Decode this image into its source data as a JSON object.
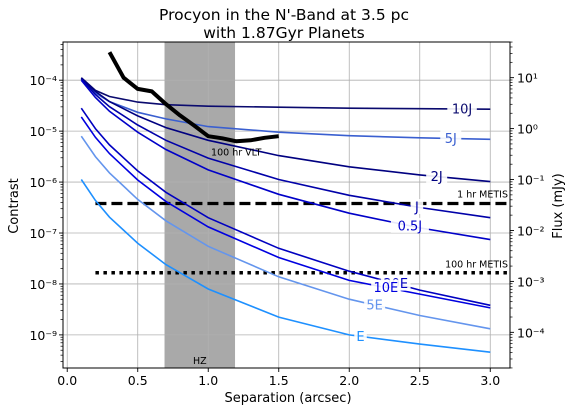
{
  "chart_data": {
    "type": "line",
    "title_line1": "Procyon in the N'-Band at 3.5 pc",
    "title_line2": "with 1.87Gyr Planets",
    "xlabel": "Separation (arcsec)",
    "ylabel": "Contrast",
    "ylabel_right": "Flux (mJy)",
    "xlim": [
      -0.03,
      3.14
    ],
    "ylim_log10": [
      -9.65,
      -3.25
    ],
    "right_ylim_log10": [
      -4.7,
      1.7
    ],
    "x_ticks": [
      0.0,
      0.5,
      1.0,
      1.5,
      2.0,
      2.5,
      3.0
    ],
    "x_tick_labels": [
      "0.0",
      "0.5",
      "1.0",
      "1.5",
      "2.0",
      "2.5",
      "3.0"
    ],
    "y_ticks_log10": [
      -9,
      -8,
      -7,
      -6,
      -5,
      -4
    ],
    "y_tick_labels": [
      "10⁻⁹",
      "10⁻⁸",
      "10⁻⁷",
      "10⁻⁶",
      "10⁻⁵",
      "10⁻⁴"
    ],
    "right_ticks_log10": [
      -4,
      -3,
      -2,
      -1,
      0,
      1
    ],
    "right_tick_labels": [
      "10⁻⁴",
      "10⁻³",
      "10⁻²",
      "10⁻¹",
      "10⁰",
      "10¹"
    ],
    "grid": true,
    "hz_band": {
      "x_start": 0.69,
      "x_end": 1.19,
      "label": "HZ",
      "color": "#a9a9a9"
    },
    "series": [
      {
        "name": "10J",
        "color": "#0a0a6e",
        "label_x": 2.8,
        "x": [
          0.1,
          0.2,
          0.3,
          0.5,
          0.7,
          1.0,
          1.5,
          2.0,
          2.5,
          3.0
        ],
        "log10_y": [
          -3.95,
          -4.2,
          -4.32,
          -4.43,
          -4.48,
          -4.51,
          -4.53,
          -4.55,
          -4.56,
          -4.57
        ]
      },
      {
        "name": "5J",
        "color": "#3a5fd0",
        "label_x": 2.72,
        "x": [
          0.1,
          0.2,
          0.3,
          0.5,
          0.7,
          1.0,
          1.5,
          2.0,
          2.5,
          3.0
        ],
        "log10_y": [
          -3.97,
          -4.25,
          -4.42,
          -4.63,
          -4.76,
          -4.91,
          -5.02,
          -5.09,
          -5.13,
          -5.16
        ]
      },
      {
        "name": "2J",
        "color": "#000080",
        "label_x": 2.62,
        "x": [
          0.1,
          0.2,
          0.3,
          0.5,
          0.7,
          1.0,
          1.5,
          2.0,
          2.5,
          3.0
        ],
        "log10_y": [
          -3.96,
          -4.22,
          -4.42,
          -4.7,
          -4.93,
          -5.18,
          -5.48,
          -5.7,
          -5.86,
          -5.99
        ]
      },
      {
        "name": "J",
        "color": "#0000a8",
        "label_x": 2.48,
        "x": [
          0.1,
          0.2,
          0.3,
          0.5,
          0.7,
          1.0,
          1.5,
          2.0,
          2.5,
          3.0
        ],
        "log10_y": [
          -3.97,
          -4.28,
          -4.52,
          -4.88,
          -5.18,
          -5.53,
          -5.95,
          -6.26,
          -6.5,
          -6.7
        ]
      },
      {
        "name": "0.5J",
        "color": "#0000c8",
        "label_x": 2.43,
        "x": [
          0.1,
          0.2,
          0.3,
          0.5,
          0.7,
          1.0,
          1.5,
          2.0,
          2.5,
          3.0
        ],
        "log10_y": [
          -4.0,
          -4.34,
          -4.61,
          -5.02,
          -5.36,
          -5.76,
          -6.24,
          -6.61,
          -6.9,
          -7.13
        ]
      },
      {
        "name": "20E",
        "color": "#0000c0",
        "label_x": 2.33,
        "x": [
          0.1,
          0.2,
          0.3,
          0.5,
          0.7,
          1.0,
          1.5,
          2.0,
          2.5,
          3.0
        ],
        "log10_y": [
          -4.55,
          -4.95,
          -5.27,
          -5.78,
          -6.2,
          -6.7,
          -7.3,
          -7.75,
          -8.12,
          -8.42
        ]
      },
      {
        "name": "10E",
        "color": "#0000e0",
        "label_x": 2.26,
        "x": [
          0.1,
          0.2,
          0.3,
          0.5,
          0.7,
          1.0,
          1.5,
          2.0,
          2.5,
          3.0
        ],
        "log10_y": [
          -4.72,
          -5.12,
          -5.44,
          -5.96,
          -6.38,
          -6.88,
          -7.48,
          -7.93,
          -8.2,
          -8.47
        ]
      },
      {
        "name": "5E",
        "color": "#6495ed",
        "label_x": 2.18,
        "x": [
          0.1,
          0.2,
          0.3,
          0.5,
          0.7,
          1.0,
          1.5,
          2.0,
          2.5,
          3.0
        ],
        "log10_y": [
          -5.1,
          -5.5,
          -5.82,
          -6.34,
          -6.76,
          -7.26,
          -7.86,
          -8.3,
          -8.62,
          -8.88
        ]
      },
      {
        "name": "E",
        "color": "#1e90ff",
        "label_x": 2.08,
        "x": [
          0.1,
          0.2,
          0.3,
          0.5,
          0.7,
          1.0,
          1.5,
          2.0,
          2.5,
          3.0
        ],
        "log10_y": [
          -5.95,
          -6.36,
          -6.69,
          -7.2,
          -7.62,
          -8.1,
          -8.65,
          -9.0,
          -9.18,
          -9.34
        ]
      }
    ],
    "vlt_curve": {
      "label": "100 hr VLT",
      "color": "#000000",
      "x": [
        0.3,
        0.4,
        0.5,
        0.6,
        0.7,
        0.8,
        0.9,
        1.0,
        1.1,
        1.2,
        1.3,
        1.4,
        1.5
      ],
      "log10_y": [
        -3.45,
        -3.95,
        -4.17,
        -4.22,
        -4.47,
        -4.69,
        -4.89,
        -5.1,
        -5.14,
        -5.2,
        -5.18,
        -5.13,
        -5.1
      ]
    },
    "metis_1hr": {
      "label": "1 hr METIS",
      "log10_y": -6.42,
      "x_start": 0.2,
      "x_end": 3.14
    },
    "metis_100hr": {
      "label": "100 hr METIS",
      "log10_y": -7.78,
      "x_start": 0.2,
      "x_end": 3.14
    }
  }
}
